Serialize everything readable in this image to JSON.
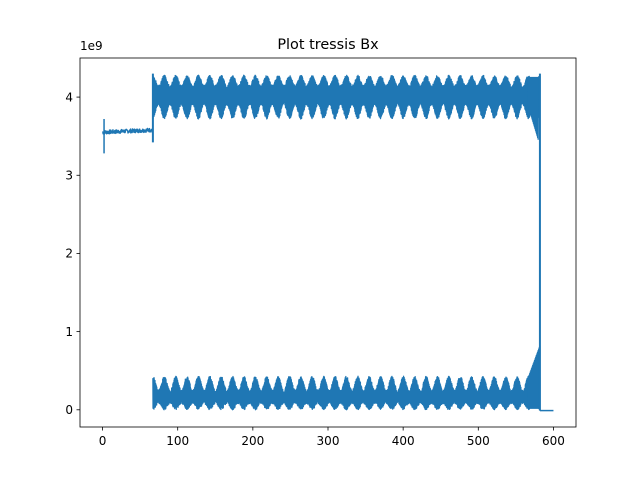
{
  "chart_data": {
    "type": "line",
    "title": "Plot tressis Bx",
    "xlabel": "",
    "ylabel": "",
    "y_offset_label": "1e9",
    "xlim": [
      -30,
      630
    ],
    "ylim": [
      -0.22,
      4.5
    ],
    "x_ticks": [
      0,
      100,
      200,
      300,
      400,
      500,
      600
    ],
    "x_tick_labels": [
      "0",
      "100",
      "200",
      "300",
      "400",
      "500",
      "600"
    ],
    "y_ticks": [
      0,
      1,
      2,
      3,
      4
    ],
    "y_tick_labels": [
      "0",
      "1",
      "2",
      "3",
      "4"
    ],
    "grid": false,
    "series": [
      {
        "color": "#1f77b4",
        "segments": [
          {
            "phase": "baseline",
            "x_range": [
              0,
              67
            ],
            "y_level": 3.55,
            "spikes": [
              {
                "x": 2,
                "y_min": 3.28,
                "y_max": 3.72
              }
            ]
          },
          {
            "phase": "upper-oscillation",
            "x_range": [
              67,
              582
            ],
            "cycles": 34,
            "envelope_top": [
              4.15,
              4.28
            ],
            "envelope_bottom": [
              3.72,
              3.9
            ],
            "start_spike": {
              "x": 67,
              "y_min": 3.42,
              "y_max": 4.3
            },
            "end_drop": {
              "x": 578,
              "y_min": 3.45
            }
          },
          {
            "phase": "lower-oscillation",
            "x_range": [
              67,
              582
            ],
            "cycles": 34,
            "envelope_top": [
              0.25,
              0.43
            ],
            "envelope_bottom": [
              0.0,
              0.08
            ],
            "end_rise": {
              "x": 580,
              "y_max": 0.82
            }
          },
          {
            "phase": "jump",
            "x": 582,
            "y_from": 4.3,
            "y_to": -0.01
          },
          {
            "phase": "tail",
            "x_range": [
              582,
              600
            ],
            "y_level": -0.01
          }
        ]
      }
    ]
  }
}
